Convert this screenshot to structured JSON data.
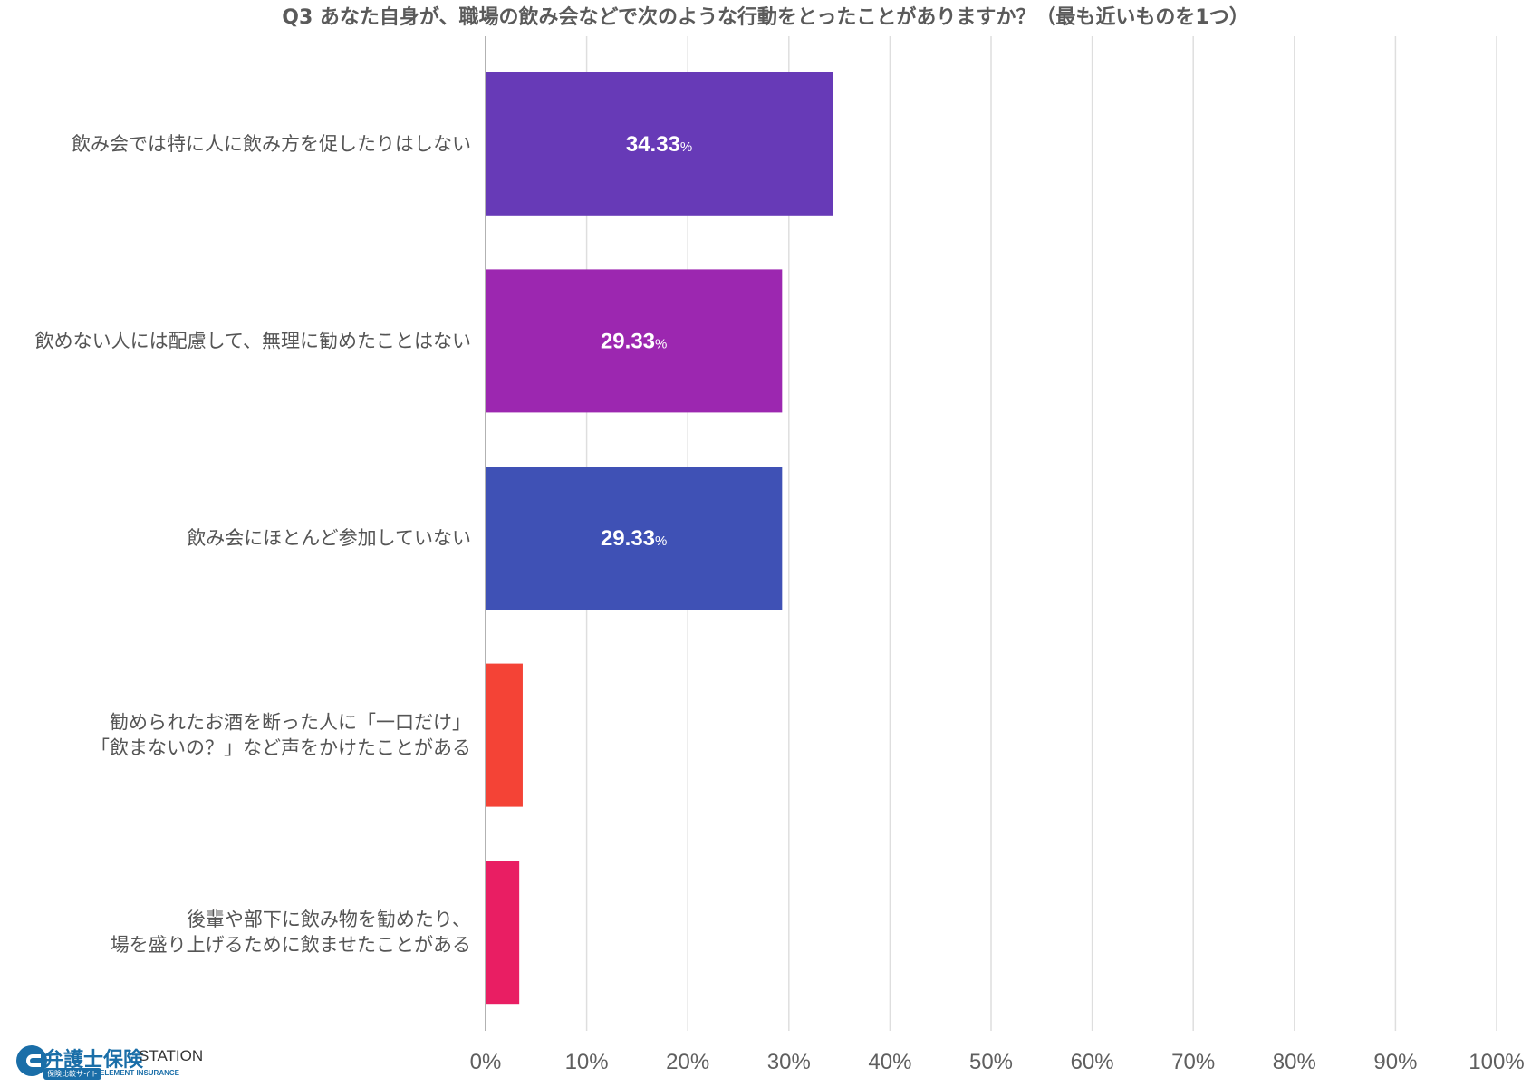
{
  "chart_data": {
    "type": "bar",
    "orientation": "horizontal",
    "title": "Q3 あなた自身が、職場の飲み会などで次のような行動をとったことがありますか？（最も近いものを1つ）",
    "categories": [
      [
        "飲み会では特に人に飲み方を促したりはしない"
      ],
      [
        "飲めない人には配慮して、無理に勧めたことはない"
      ],
      [
        "飲み会にほとんど参加していない"
      ],
      [
        "勧められたお酒を断った人に「一口だけ」",
        "「飲まないの？」など声をかけたことがある"
      ],
      [
        "後輩や部下に飲み物を勧めたり、",
        "場を盛り上げるために飲ませたことがある"
      ]
    ],
    "values": [
      34.33,
      29.33,
      29.33,
      3.67,
      3.33
    ],
    "data_labels": [
      "34.33",
      "29.33",
      "29.33",
      "",
      ""
    ],
    "data_label_unit": "%",
    "colors": [
      "#673ab7",
      "#9c27b0",
      "#3f51b5",
      "#f44336",
      "#e91e63"
    ],
    "xlim": [
      0,
      100
    ],
    "xticks": [
      "0%",
      "10%",
      "20%",
      "30%",
      "40%",
      "50%",
      "60%",
      "70%",
      "80%",
      "90%",
      "100%"
    ],
    "xtick_values": [
      0,
      10,
      20,
      30,
      40,
      50,
      60,
      70,
      80,
      90,
      100
    ],
    "grid": true,
    "legend": "none"
  },
  "logo": {
    "main": "弁護士保険",
    "station": "STATION",
    "sub_badge": "保険比較サイト",
    "sub_text": "ELEMENT INSURANCE"
  }
}
